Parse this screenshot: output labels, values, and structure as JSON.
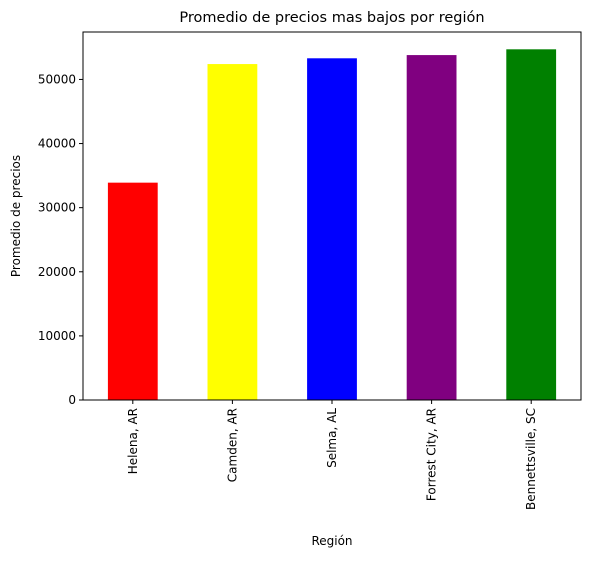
{
  "chart_data": {
    "type": "bar",
    "title": "Promedio de precios mas bajos por región",
    "xlabel": "Región",
    "ylabel": "Promedio de precios",
    "categories": [
      "Helena, AR",
      "Camden, AR",
      "Selma, AL",
      "Forrest City, AR",
      "Bennettsville, SC"
    ],
    "values": [
      33900,
      52400,
      53300,
      53800,
      54700
    ],
    "colors": [
      "#ff0000",
      "#ffff00",
      "#0000ff",
      "#800080",
      "#008000"
    ],
    "ylim": [
      0,
      57400
    ],
    "yticks": [
      0,
      10000,
      20000,
      30000,
      40000,
      50000
    ],
    "grid": false,
    "legend": "none"
  }
}
